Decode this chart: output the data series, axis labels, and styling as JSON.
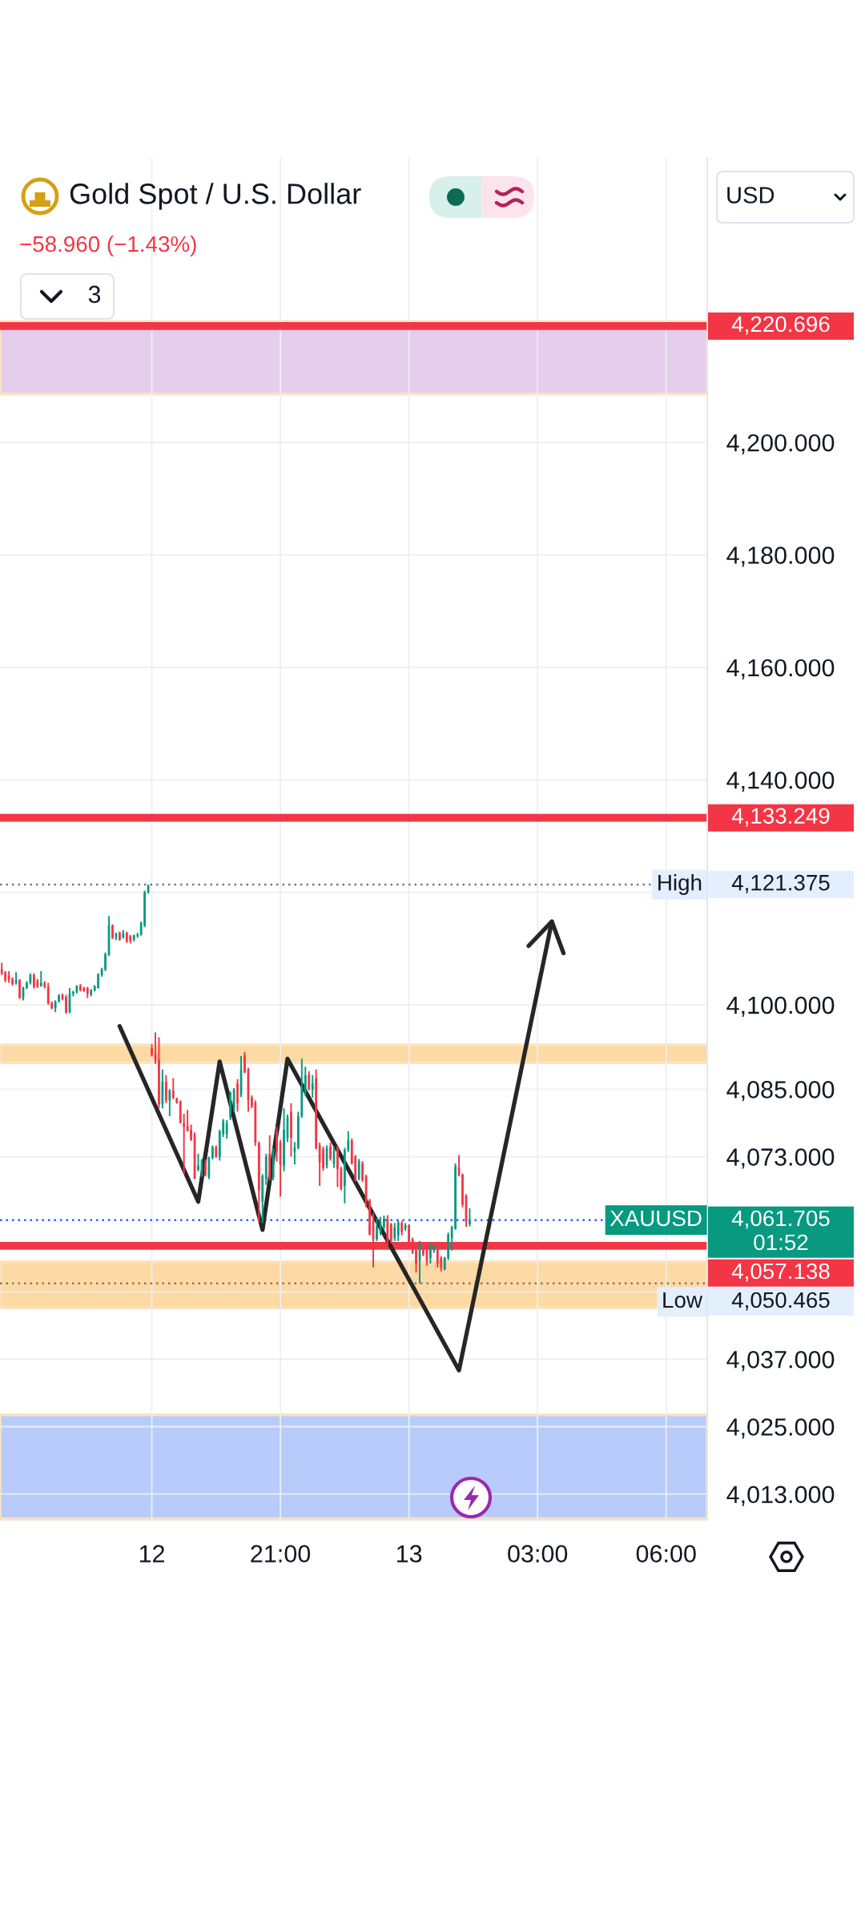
{
  "chart_data": {
    "type": "candlestick",
    "title": "Gold Spot / U.S. Dollar",
    "subtitle": "−58.960 (−1.43%)",
    "ylabel": "USD",
    "annotations": [
      "3",
      "4,220.696",
      "4,133.249",
      "4,121.375",
      "4,061.705",
      "01:52",
      "4,057.138",
      "4,050.465"
    ],
    "categories": [
      null,
      null,
      null,
      null,
      null,
      null,
      null,
      null,
      null,
      null,
      null,
      null,
      null,
      null,
      null,
      null,
      null,
      null,
      null,
      null,
      null,
      null,
      null,
      null,
      null,
      null,
      null,
      null,
      null,
      null,
      null,
      null,
      null,
      null,
      null,
      null,
      null,
      null,
      null,
      null,
      null,
      null,
      "12",
      null,
      null,
      null,
      null,
      null,
      null,
      null,
      null,
      null,
      null,
      null,
      null,
      null,
      null,
      null,
      null,
      null,
      null,
      null,
      null,
      null,
      null,
      null,
      null,
      null,
      null,
      null,
      null,
      null,
      null,
      null,
      null,
      null,
      null,
      null,
      "21:00",
      null,
      null,
      null,
      null,
      null,
      null,
      null,
      null,
      null,
      null,
      null,
      null,
      null,
      null,
      null,
      null,
      null,
      null,
      null,
      null,
      null,
      null,
      null,
      null,
      null,
      null,
      null,
      null,
      null,
      null,
      null,
      null,
      null,
      null,
      null,
      "13",
      null,
      null,
      null,
      null,
      null,
      null,
      null,
      null,
      null,
      null,
      null,
      null,
      null,
      null,
      null,
      null,
      null,
      null,
      null,
      null,
      null,
      null,
      null,
      null,
      null,
      null,
      null,
      null,
      null,
      null,
      null,
      null,
      null,
      null,
      null,
      "03:00",
      null,
      null,
      null,
      null,
      null,
      null,
      null,
      null,
      null,
      null,
      null,
      null,
      null,
      null,
      null,
      null,
      null,
      null,
      null,
      null,
      null,
      null,
      null,
      null,
      null,
      null,
      null,
      null,
      null,
      null,
      null,
      null,
      null,
      null,
      null,
      "06:00",
      null,
      null,
      null,
      null,
      null,
      null,
      null,
      null,
      null,
      null,
      null
    ],
    "ohlc": [
      [
        4106.3,
        4107.5,
        4105.3,
        4105.6
      ],
      [
        4105.8,
        4106.0,
        4104.0,
        4104.4
      ],
      [
        4105.1,
        4106.0,
        4103.9,
        4104.4
      ],
      [
        4104.6,
        4104.9,
        4103.4,
        4103.7
      ],
      [
        4103.9,
        4105.8,
        4103.6,
        4104.4
      ],
      [
        4104.4,
        4104.6,
        4101.0,
        4101.3
      ],
      [
        4101.3,
        4103.2,
        4100.8,
        4103.0
      ],
      [
        4103.0,
        4104.2,
        4102.8,
        4103.9
      ],
      [
        4103.9,
        4105.6,
        4103.6,
        4105.3
      ],
      [
        4105.3,
        4105.6,
        4102.9,
        4103.2
      ],
      [
        4104.3,
        4104.6,
        4103.0,
        4103.2
      ],
      [
        4103.4,
        4106.0,
        4103.2,
        4103.9
      ],
      [
        4103.9,
        4104.2,
        4102.9,
        4103.2
      ],
      [
        4103.2,
        4103.9,
        4100.0,
        4100.3
      ],
      [
        4100.3,
        4100.6,
        4099.2,
        4099.4
      ],
      [
        4099.4,
        4100.8,
        4098.7,
        4100.6
      ],
      [
        4100.6,
        4101.9,
        4100.4,
        4101.7
      ],
      [
        4101.7,
        4102.0,
        4100.8,
        4101.0
      ],
      [
        4101.4,
        4101.8,
        4098.4,
        4098.7
      ],
      [
        4098.7,
        4103.0,
        4098.5,
        4102.0
      ],
      [
        4102.0,
        4102.5,
        4101.5,
        4102.3
      ],
      [
        4102.3,
        4103.5,
        4102.0,
        4103.3
      ],
      [
        4103.3,
        4103.7,
        4102.4,
        4102.6
      ],
      [
        4103.0,
        4103.2,
        4102.3,
        4102.5
      ],
      [
        4103.0,
        4103.2,
        4101.2,
        4102.0
      ],
      [
        4101.8,
        4102.8,
        4101.5,
        4102.6
      ],
      [
        4102.6,
        4103.5,
        4102.4,
        4103.3
      ],
      [
        4103.0,
        4105.6,
        4102.9,
        4105.4
      ],
      [
        4105.3,
        4106.6,
        4105.0,
        4106.3
      ],
      [
        4106.3,
        4109.3,
        4106.0,
        4109.0
      ],
      [
        4108.9,
        4115.8,
        4108.7,
        4114.1
      ],
      [
        4114.1,
        4114.3,
        4111.7,
        4111.9
      ],
      [
        4112.0,
        4112.8,
        4111.5,
        4112.6
      ],
      [
        4112.8,
        4113.0,
        4111.4,
        4111.6
      ],
      [
        4112.0,
        4113.3,
        4111.8,
        4112.7
      ],
      [
        4112.8,
        4113.0,
        4111.0,
        4111.3
      ],
      [
        4112.2,
        4112.4,
        4110.9,
        4111.4
      ],
      [
        4111.6,
        4112.5,
        4111.3,
        4112.3
      ],
      [
        4112.3,
        4112.8,
        4111.9,
        4112.5
      ],
      [
        4112.5,
        4114.8,
        4112.3,
        4114.6
      ],
      [
        4114.1,
        4120.3,
        4113.8,
        4120.0
      ],
      [
        4120.0,
        4121.375,
        4119.8,
        4121.2
      ],
      [
        4092.3,
        4093.0,
        4090.8,
        4091.1
      ],
      [
        4091.3,
        4095.1,
        4089.5,
        4090.3
      ],
      [
        4090.3,
        4094.2,
        4081.6,
        4082.3
      ],
      [
        4082.3,
        4088.5,
        4081.6,
        4086.3
      ],
      [
        4086.3,
        4087.5,
        4082.5,
        4083.0
      ],
      [
        4083.0,
        4085.0,
        4080.2,
        4084.7
      ],
      [
        4084.7,
        4087.0,
        4083.2,
        4083.5
      ],
      [
        4083.3,
        4083.5,
        4082.4,
        4082.6
      ],
      [
        4082.8,
        4083.0,
        4078.9,
        4079.0
      ],
      [
        4079.0,
        4080.6,
        4069.9,
        4078.3
      ],
      [
        4078.5,
        4081.3,
        4077.5,
        4077.6
      ],
      [
        4077.8,
        4078.7,
        4075.8,
        4076.0
      ],
      [
        4077.0,
        4077.3,
        4069.0,
        4069.1
      ],
      [
        4070.7,
        4073.5,
        4070.4,
        4071.4
      ],
      [
        4069.5,
        4072.6,
        4069.4,
        4072.3
      ],
      [
        4071.8,
        4072.5,
        4069.5,
        4069.7
      ],
      [
        4069.4,
        4073.0,
        4069.0,
        4072.8
      ],
      [
        4072.8,
        4075.0,
        4072.5,
        4074.7
      ],
      [
        4074.7,
        4075.0,
        4072.8,
        4073.0
      ],
      [
        4073.0,
        4077.8,
        4072.3,
        4077.5
      ],
      [
        4077.0,
        4079.7,
        4076.5,
        4079.4
      ],
      [
        4077.0,
        4079.5,
        4076.2,
        4078.9
      ],
      [
        4080.0,
        4084.6,
        4079.5,
        4084.4
      ],
      [
        4081.5,
        4085.2,
        4081.0,
        4084.9
      ],
      [
        4086.0,
        4086.8,
        4081.0,
        4082.5
      ],
      [
        4084.0,
        4090.9,
        4083.6,
        4088.5
      ],
      [
        4091.0,
        4091.6,
        4087.8,
        4088.0
      ],
      [
        4088.5,
        4088.8,
        4081.0,
        4083.0
      ],
      [
        4083.5,
        4083.9,
        4081.6,
        4082.0
      ],
      [
        4082.6,
        4083.0,
        4074.9,
        4075.5
      ],
      [
        4075.4,
        4075.7,
        4061.2,
        4067.0
      ],
      [
        4065.0,
        4069.9,
        4061.2,
        4069.5
      ],
      [
        4069.0,
        4073.5,
        4068.0,
        4073.0
      ],
      [
        4073.5,
        4076.8,
        4068.8,
        4069.3
      ],
      [
        4069.3,
        4074.5,
        4068.8,
        4074.2
      ],
      [
        4077.5,
        4078.3,
        4072.1,
        4074.0
      ],
      [
        4075.5,
        4076.0,
        4065.9,
        4071.6
      ],
      [
        4071.4,
        4081.6,
        4070.4,
        4077.8
      ],
      [
        4076.3,
        4080.5,
        4075.6,
        4080.1
      ],
      [
        4081.0,
        4082.5,
        4073.0,
        4076.4
      ],
      [
        4073.9,
        4075.6,
        4071.6,
        4074.6
      ],
      [
        4074.6,
        4081.0,
        4074.3,
        4080.2
      ],
      [
        4080.2,
        4090.4,
        4079.9,
        4085.4
      ],
      [
        4084.4,
        4089.0,
        4083.8,
        4087.5
      ],
      [
        4087.6,
        4088.2,
        4084.8,
        4085.0
      ],
      [
        4084.9,
        4087.5,
        4083.5,
        4086.0
      ],
      [
        4087.0,
        4088.5,
        4074.3,
        4074.5
      ],
      [
        4075.0,
        4075.5,
        4067.8,
        4072.0
      ],
      [
        4074.3,
        4074.8,
        4070.5,
        4071.0
      ],
      [
        4071.5,
        4075.0,
        4070.9,
        4074.5
      ],
      [
        4074.8,
        4075.5,
        4072.3,
        4072.6
      ],
      [
        4071.7,
        4074.7,
        4071.0,
        4074.1
      ],
      [
        4074.5,
        4075.0,
        4067.6,
        4070.8
      ],
      [
        4070.9,
        4071.2,
        4067.0,
        4067.3
      ],
      [
        4067.8,
        4074.6,
        4064.7,
        4074.2
      ],
      [
        4074.2,
        4077.5,
        4073.8,
        4075.9
      ],
      [
        4075.9,
        4076.2,
        4071.6,
        4071.8
      ],
      [
        4073.0,
        4073.3,
        4068.6,
        4068.8
      ],
      [
        4069.0,
        4072.6,
        4068.8,
        4072.2
      ],
      [
        4071.8,
        4072.2,
        4068.5,
        4068.8
      ],
      [
        4069.5,
        4069.8,
        4064.0,
        4064.2
      ],
      [
        4065.2,
        4065.5,
        4059.0,
        4059.2
      ],
      [
        4061.6,
        4063.0,
        4053.3,
        4058.3
      ],
      [
        4058.3,
        4062.0,
        4058.0,
        4060.6
      ],
      [
        4059.5,
        4062.3,
        4059.0,
        4061.5
      ],
      [
        4060.5,
        4062.5,
        4060.0,
        4062.0
      ],
      [
        4062.0,
        4062.6,
        4057.0,
        4058.0
      ],
      [
        4061.0,
        4061.2,
        4057.6,
        4058.0
      ],
      [
        4058.5,
        4061.2,
        4058.0,
        4060.4
      ],
      [
        4059.0,
        4061.6,
        4058.0,
        4061.3
      ],
      [
        4061.2,
        4061.6,
        4059.0,
        4059.6
      ],
      [
        4060.2,
        4061.2,
        4059.8,
        4060.8
      ],
      [
        4060.8,
        4061.0,
        4056.9,
        4057.5
      ],
      [
        4058.3,
        4058.6,
        4055.7,
        4056.0
      ],
      [
        4056.4,
        4056.6,
        4052.4,
        4054.0
      ],
      [
        4054.5,
        4058.0,
        4050.465,
        4057.5
      ],
      [
        4057.5,
        4057.8,
        4055.3,
        4055.6
      ],
      [
        4057.0,
        4057.3,
        4053.6,
        4054.5
      ],
      [
        4055.0,
        4057.6,
        4054.0,
        4057.2
      ],
      [
        4056.3,
        4057.4,
        4055.9,
        4057.1
      ],
      [
        4056.6,
        4056.8,
        4053.3,
        4054.0
      ],
      [
        4055.0,
        4055.3,
        4052.6,
        4053.2
      ],
      [
        4053.0,
        4055.2,
        4052.8,
        4055.0
      ],
      [
        4055.0,
        4059.5,
        4054.6,
        4059.2
      ],
      [
        4058.5,
        4060.7,
        4056.3,
        4060.5
      ],
      [
        4060.2,
        4071.8,
        4060.0,
        4071.3
      ],
      [
        4071.0,
        4073.3,
        4069.5,
        4069.8
      ],
      [
        4069.8,
        4070.0,
        4064.0,
        4064.5
      ],
      [
        4066.0,
        4066.3,
        4060.5,
        4061.5
      ],
      [
        4061.0,
        4063.8,
        4060.6,
        4061.705
      ],
      null,
      null,
      null,
      null,
      null,
      null,
      null,
      null,
      null,
      null,
      null,
      null,
      null,
      null,
      null,
      null,
      null,
      null,
      null,
      null,
      null,
      null,
      null,
      null,
      null,
      null,
      null,
      null,
      null,
      null,
      null,
      null,
      null,
      null,
      null,
      null,
      null,
      null,
      null,
      null,
      null,
      null,
      null,
      null,
      null,
      null,
      null,
      null,
      null,
      null,
      null,
      null,
      null,
      null,
      null,
      null,
      null,
      null,
      null,
      null,
      null,
      null,
      null,
      null,
      null,
      null
    ],
    "series": [
      {
        "type": "line",
        "color": "#262626",
        "values": [
          null,
          null,
          null,
          null,
          null,
          null,
          null,
          null,
          null,
          null,
          null,
          null,
          null,
          null,
          null,
          null,
          null,
          null,
          null,
          null,
          null,
          null,
          null,
          null,
          null,
          null,
          null,
          null,
          null,
          null,
          null,
          null,
          null,
          4096.2,
          null,
          null,
          null,
          null,
          null,
          null,
          null,
          null,
          null,
          null,
          null,
          null,
          null,
          null,
          null,
          null,
          null,
          null,
          null,
          null,
          null,
          4065.0,
          null,
          null,
          null,
          null,
          null,
          4089.9,
          null,
          null,
          null,
          null,
          null,
          null,
          null,
          null,
          null,
          null,
          null,
          4060.0,
          null,
          null,
          null,
          null,
          null,
          null,
          4090.4,
          null,
          null,
          null,
          null,
          null,
          null,
          null,
          null,
          null,
          null,
          null,
          null,
          null,
          null,
          null,
          null,
          null,
          null,
          null,
          null,
          null,
          null,
          null,
          null,
          null,
          null,
          null,
          null,
          null,
          null,
          null,
          null,
          null,
          null,
          null,
          null,
          null,
          null,
          null,
          null,
          null,
          null,
          null,
          null,
          null,
          null,
          null,
          4035.0,
          null,
          null,
          null,
          null,
          null,
          null,
          null,
          null,
          null,
          null,
          null,
          null,
          null,
          null,
          null,
          null,
          null,
          null,
          null,
          null,
          null,
          null,
          null,
          null,
          null,
          4114.8,
          null,
          null,
          null,
          null,
          null,
          null,
          null,
          null,
          null,
          null,
          null,
          null,
          null,
          null,
          null,
          null,
          null,
          null,
          null,
          null,
          null,
          null,
          null,
          null,
          null,
          null,
          null,
          null,
          null,
          null,
          null,
          null,
          null,
          null,
          null,
          null,
          null,
          null,
          null,
          null,
          null,
          null,
          null
        ]
      }
    ],
    "ylim": [
      4008.4,
      4250.6
    ],
    "yticks": [
      {
        "value": 4200,
        "label": "4,200.000"
      },
      {
        "value": 4180,
        "label": "4,180.000"
      },
      {
        "value": 4160,
        "label": "4,160.000"
      },
      {
        "value": 4140,
        "label": "4,140.000"
      },
      {
        "value": 4120,
        "label": null
      },
      {
        "value": 4100,
        "label": "4,100.000"
      },
      {
        "value": 4085,
        "label": "4,085.000"
      },
      {
        "value": 4073,
        "label": "4,073.000"
      },
      {
        "value": 4049,
        "label": null
      },
      {
        "value": 4037,
        "label": "4,037.000"
      },
      {
        "value": 4025,
        "label": "4,025.000"
      },
      {
        "value": 4013,
        "label": "4,013.000"
      }
    ],
    "ref_lines": [
      {
        "axis": "y",
        "value": 4220.696,
        "color": "#f23645",
        "line_style": "solid"
      },
      {
        "axis": "y",
        "value": 4133.249,
        "color": "#f23645",
        "line_style": "solid"
      },
      {
        "axis": "y",
        "value": 4121.375,
        "label": "High",
        "color": "#787b86",
        "line_style": "dotted"
      },
      {
        "axis": "y",
        "value": 4061.705,
        "label": "XAUUSD",
        "color": "#2962ff",
        "line_style": "dotted"
      },
      {
        "axis": "y",
        "value": 4057.138,
        "color": "#f23645",
        "line_style": "solid"
      },
      {
        "axis": "y",
        "value": 4050.465,
        "label": "Low",
        "color": "#787b86",
        "line_style": "dotted"
      }
    ],
    "bands": [
      {
        "axis": "y",
        "from": 4208.6,
        "to": 4221.5,
        "color": "#e6cdec"
      },
      {
        "axis": "y",
        "from": 4089.7,
        "to": 4092.9,
        "color": "#fdd9a3"
      },
      {
        "axis": "y",
        "from": 4046.1,
        "to": 4054.3,
        "color": "#fdd9a3"
      },
      {
        "axis": "y",
        "from": 4008.6,
        "to": 4027.1,
        "color": "#b8cbfb"
      }
    ],
    "grid": true
  }
}
